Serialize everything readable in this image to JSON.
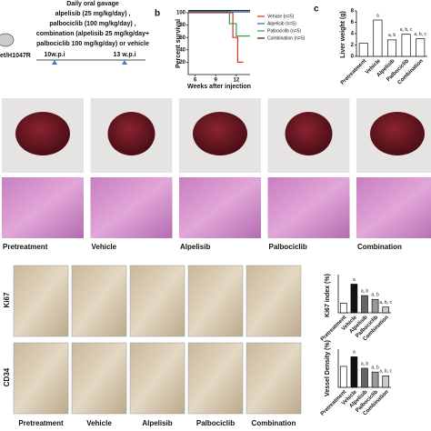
{
  "schematic": {
    "mouse_label": "et/H1047R",
    "lines": [
      "Daily oral gavage",
      "alpelisib (25 mg/kg/day) ,",
      "palbociclib (100 mg/kg/day) ,",
      "combination (alpelisib 25 mg/kg/day+",
      "palbociclib 100 mg/kg/day) or vehicle"
    ],
    "timepoints": [
      "10w.p.i",
      "13 w.p.i"
    ]
  },
  "panel_b": {
    "type": "line",
    "label": "b",
    "ylabel": "Percent survival",
    "xlabel": "Weeks after injection",
    "xlim": [
      5,
      14
    ],
    "xticks": [
      6,
      9,
      12
    ],
    "ylim": [
      0,
      100
    ],
    "yticks": [
      20,
      40,
      60,
      80,
      100
    ],
    "series": [
      {
        "name": "Vehicle (n=5)",
        "color": "#e0302c",
        "x": [
          5,
          11.5,
          11.5,
          12.2,
          12.2,
          13
        ],
        "values": [
          100,
          100,
          60,
          60,
          20,
          20
        ]
      },
      {
        "name": "Alpelisib (n=5)",
        "color": "#3455d0",
        "x": [
          5,
          14
        ],
        "values": [
          100,
          100
        ]
      },
      {
        "name": "Palbociclib (n=5)",
        "color": "#2fa33a",
        "x": [
          5,
          11,
          11,
          12,
          12,
          14
        ],
        "values": [
          100,
          100,
          80,
          80,
          60,
          60
        ]
      },
      {
        "name": "Combination (n=5)",
        "color": "#222222",
        "x": [
          5,
          14
        ],
        "values": [
          100,
          100
        ]
      }
    ]
  },
  "panel_c": {
    "type": "bar",
    "label": "c",
    "ylabel": "Liver weight (g)",
    "categories": [
      "Pretreatment",
      "Vehicle",
      "Alpelisib",
      "Palbociclib",
      "Combination"
    ],
    "values": [
      2.3,
      6.4,
      2.9,
      3.9,
      3.1
    ],
    "colors": [
      "#ffffff",
      "#ffffff",
      "#ffffff",
      "#ffffff",
      "#ffffff"
    ],
    "annotations": [
      null,
      "a",
      "a, b",
      "a, b, c",
      "a, b, c"
    ],
    "ylim": [
      0,
      8
    ],
    "yticks": [
      0,
      2,
      4,
      6,
      8
    ]
  },
  "histology_labels": [
    "Pretreatment",
    "Vehicle",
    "Alpelisib",
    "Palbociclib",
    "Combination"
  ],
  "ihc_rows": [
    "Ki67",
    "CD34"
  ],
  "ihc_labels": [
    "Pretreatment",
    "Vehicle",
    "Alpelisib",
    "Palbociclib",
    "Combination"
  ],
  "ki67_chart": {
    "type": "bar",
    "ylabel": "Ki67 index (%)",
    "categories": [
      "Pretreatment",
      "Vehicle",
      "Alpelisib",
      "Palbociclib",
      "Combination"
    ],
    "values": [
      25,
      75,
      45,
      35,
      15
    ],
    "colors": [
      "#ffffff",
      "#111111",
      "#666666",
      "#999999",
      "#cccccc"
    ],
    "annotations": [
      null,
      "a",
      "a, b",
      "a, b",
      "a, b, c"
    ],
    "ylim": [
      0,
      100
    ]
  },
  "cd34_chart": {
    "type": "bar",
    "ylabel": "Vessel Density (%)",
    "categories": [
      "Pretreatment",
      "Vehicle",
      "Alpelisib",
      "Palbociclib",
      "Combination"
    ],
    "values": [
      55,
      80,
      50,
      40,
      30
    ],
    "colors": [
      "#ffffff",
      "#111111",
      "#666666",
      "#999999",
      "#cccccc"
    ],
    "annotations": [
      null,
      "a",
      "a, b",
      "a, b",
      "a, b, c"
    ],
    "ylim": [
      0,
      100
    ]
  }
}
